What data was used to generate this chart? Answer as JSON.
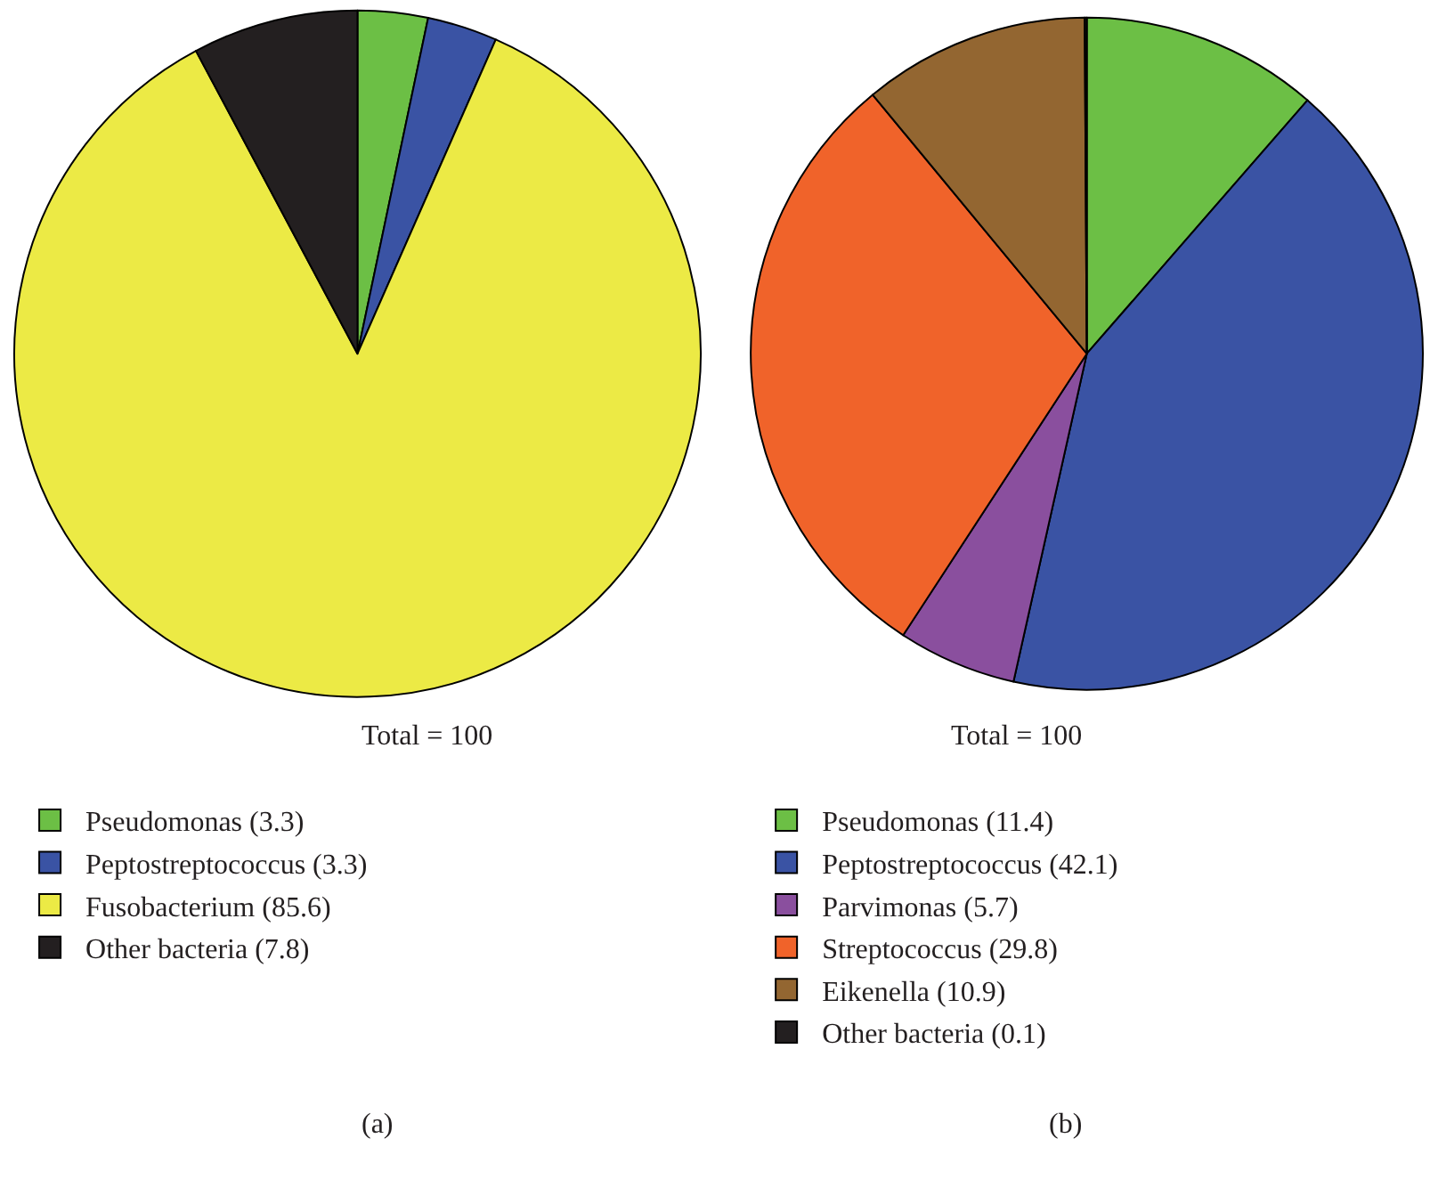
{
  "chart_data": [
    {
      "type": "pie",
      "categories": [
        "Pseudomonas (3.3)",
        "Peptostreptococcus (3.3)",
        "Fusobacterium (85.6)",
        "Other bacteria (7.8)"
      ],
      "values": [
        3.3,
        3.3,
        85.6,
        7.8
      ],
      "colors": [
        "#6cbf45",
        "#3a53a4",
        "#ecea45",
        "#231f20"
      ],
      "legend": "bottom",
      "annotations": [
        "Total = 100",
        "(a)"
      ]
    },
    {
      "type": "pie",
      "categories": [
        "Pseudomonas (11.4)",
        "Peptostreptococcus (42.1)",
        "Parvimonas (5.7)",
        "Streptococcus (29.8)",
        "Eikenella (10.9)",
        "Other bacteria (0.1)"
      ],
      "values": [
        11.4,
        42.1,
        5.7,
        29.8,
        10.9,
        0.1
      ],
      "colors": [
        "#6cbf45",
        "#3a53a4",
        "#8a4f9e",
        "#f0632a",
        "#936631",
        "#231f20"
      ],
      "legend": "bottom",
      "annotations": [
        "Total = 100",
        "(b)"
      ]
    }
  ]
}
